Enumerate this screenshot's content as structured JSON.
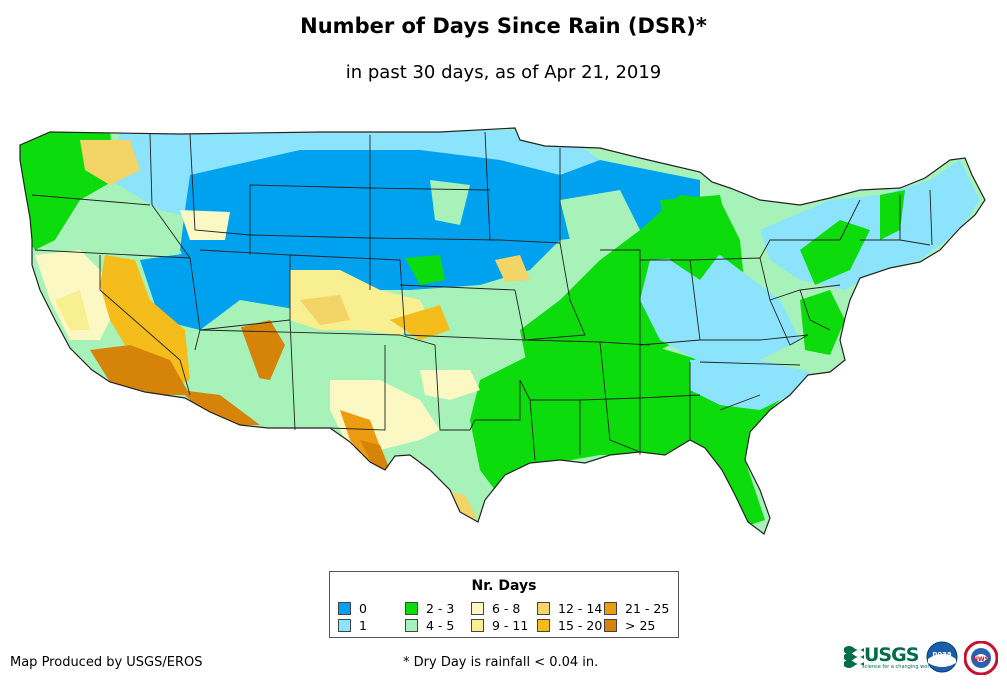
{
  "title": "Number of Days Since Rain (DSR)*",
  "subtitle": "in past 30 days, as of Apr 21, 2019",
  "legend": {
    "title": "Nr. Days",
    "items": [
      {
        "label": "0",
        "color": "#00a2ef"
      },
      {
        "label": "1",
        "color": "#8be4fb"
      },
      {
        "label": "2 - 3",
        "color": "#0cdc0b"
      },
      {
        "label": "4 - 5",
        "color": "#a7f2b9"
      },
      {
        "label": "6 - 8",
        "color": "#fbf8c4"
      },
      {
        "label": "9 - 11",
        "color": "#f7ef90"
      },
      {
        "label": "12 - 14",
        "color": "#f3d466"
      },
      {
        "label": "15 - 20",
        "color": "#f5bd1c"
      },
      {
        "label": "21 - 25",
        "color": "#eb9c11"
      },
      {
        "label": "> 25",
        "color": "#d68309"
      }
    ]
  },
  "credit": "Map Produced by USGS/EROS",
  "footnote": "* Dry Day is rainfall < 0.04 in.",
  "logos": {
    "usgs": "USGS",
    "usgs_tagline": "science for a changing world",
    "noaa": "noaa",
    "nws": "NWS"
  },
  "icons": [
    "usgs-logo-icon",
    "noaa-logo-icon",
    "nws-logo-icon"
  ]
}
